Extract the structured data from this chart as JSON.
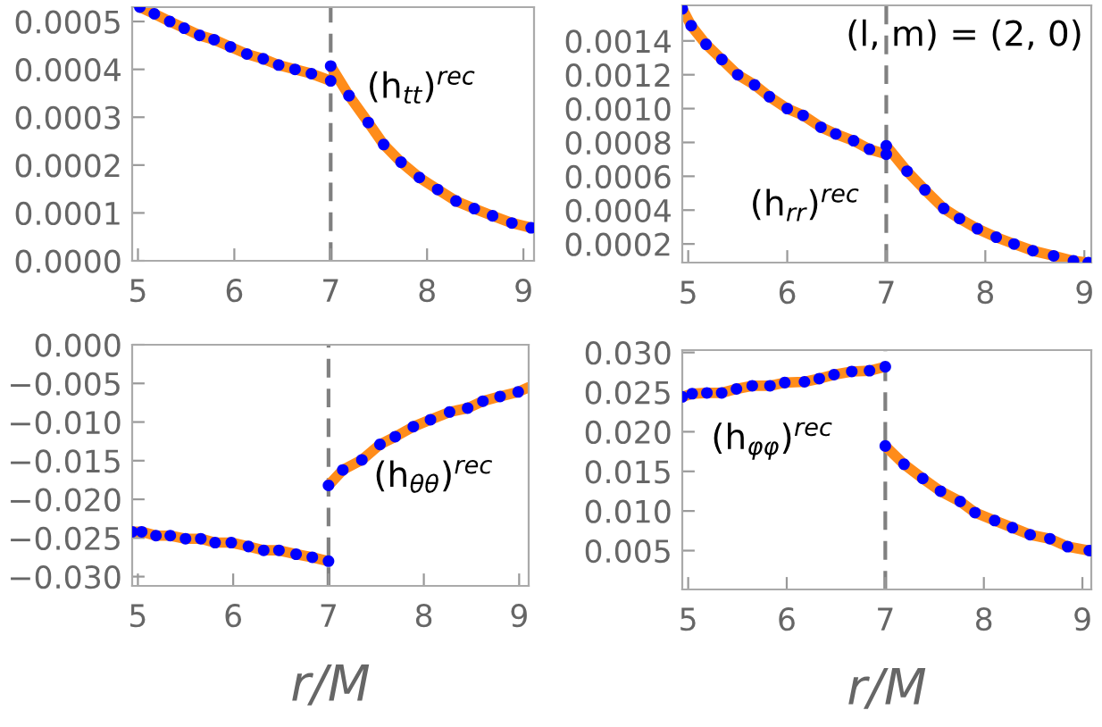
{
  "chart_data": [
    {
      "type": "line",
      "annotations": [
        "(h$_{tt}$)$^{rec}$"
      ],
      "xlim": [
        4.94,
        9.11
      ],
      "xticks": [
        5,
        6,
        7,
        8,
        9
      ],
      "ylim": [
        0,
        0.00053
      ],
      "yticks": [
        {
          "value": 0,
          "label": "0.0000"
        },
        0.0001,
        0.0002,
        0.0003,
        0.0004,
        0.0005
      ],
      "grid": false,
      "ref_lines": [
        {
          "axis": "x",
          "value": 7,
          "color": "#808080",
          "line_style": "dashed"
        }
      ],
      "series": [
        {
          "type": "line",
          "color": "#ff8c1a",
          "x": [
            5.02,
            5.17,
            5.33,
            5.48,
            5.64,
            5.79,
            5.96,
            6.13,
            6.3,
            6.46,
            6.63,
            6.8,
            7.0
          ],
          "values": [
            0.00053,
            0.000516,
            0.0005,
            0.000486,
            0.000471,
            0.000462,
            0.000447,
            0.000432,
            0.000422,
            0.000409,
            0.0004,
            0.000391,
            0.000376
          ]
        },
        {
          "type": "line",
          "color": "#ff8c1a",
          "x": [
            7.0,
            7.19,
            7.39,
            7.55,
            7.73,
            7.92,
            8.11,
            8.3,
            8.49,
            8.68,
            8.88,
            9.08
          ],
          "values": [
            0.000407,
            0.000345,
            0.000289,
            0.000243,
            0.000206,
            0.000174,
            0.000149,
            0.000125,
            0.000109,
            9.4e-05,
            7.9e-05,
            6.9e-05
          ]
        },
        {
          "type": "scatter",
          "color": "#0000ff",
          "marker": "circle",
          "x": [
            5.02,
            5.17,
            5.33,
            5.48,
            5.64,
            5.79,
            5.96,
            6.13,
            6.3,
            6.46,
            6.63,
            6.8,
            7.0,
            7.0,
            7.19,
            7.39,
            7.55,
            7.73,
            7.92,
            8.11,
            8.3,
            8.49,
            8.68,
            8.88,
            9.08
          ],
          "values": [
            0.00053,
            0.000516,
            0.0005,
            0.000486,
            0.000471,
            0.000462,
            0.000447,
            0.000432,
            0.000422,
            0.000409,
            0.0004,
            0.000391,
            0.000376,
            0.000407,
            0.000345,
            0.000289,
            0.000243,
            0.000206,
            0.000174,
            0.000149,
            0.000125,
            0.000109,
            9.4e-05,
            7.9e-05,
            6.9e-05
          ]
        }
      ]
    },
    {
      "type": "line",
      "annotations": [
        "(h$_{rr}$)$^{rec}$",
        "(l, m) = (2, 0)"
      ],
      "xlim": [
        4.94,
        9.07
      ],
      "xticks": [
        5,
        6,
        7,
        8,
        9
      ],
      "ylim": [
        9e-05,
        0.00161
      ],
      "yticks": [
        0.0002,
        0.0004,
        0.0006,
        0.0008,
        {
          "value": 0.001,
          "label": "0.0010"
        },
        0.0012,
        0.0014
      ],
      "grid": false,
      "ref_lines": [
        {
          "axis": "x",
          "value": 7,
          "color": "#808080",
          "line_style": "dashed"
        }
      ],
      "series": [
        {
          "type": "line",
          "color": "#ff8c1a",
          "x": [
            4.94,
            5.03,
            5.18,
            5.34,
            5.5,
            5.67,
            5.82,
            6.0,
            6.16,
            6.34,
            6.49,
            6.67,
            6.83,
            7.0
          ],
          "values": [
            0.00159,
            0.00149,
            0.00138,
            0.00129,
            0.0012,
            0.00114,
            0.00107,
            0.001,
            0.00096,
            0.00089,
            0.00085,
            0.00081,
            0.00076,
            0.00073
          ]
        },
        {
          "type": "line",
          "color": "#ff8c1a",
          "x": [
            7.0,
            7.21,
            7.39,
            7.58,
            7.74,
            7.92,
            8.11,
            8.29,
            8.48,
            8.69,
            8.89,
            9.04
          ],
          "values": [
            0.00078,
            0.00063,
            0.00052,
            0.00041,
            0.00035,
            0.00029,
            0.00024,
            0.0002,
            0.00016,
            0.00013,
            0.0001,
            9e-05
          ]
        },
        {
          "type": "scatter",
          "color": "#0000ff",
          "marker": "circle",
          "x": [
            4.94,
            5.03,
            5.18,
            5.34,
            5.5,
            5.67,
            5.82,
            6.0,
            6.16,
            6.34,
            6.49,
            6.67,
            6.83,
            7.0,
            7.0,
            7.21,
            7.39,
            7.58,
            7.74,
            7.92,
            8.11,
            8.29,
            8.48,
            8.69,
            8.89,
            9.04
          ],
          "values": [
            0.00159,
            0.00149,
            0.00138,
            0.00129,
            0.0012,
            0.00114,
            0.00107,
            0.001,
            0.00096,
            0.00089,
            0.00085,
            0.00081,
            0.00076,
            0.00073,
            0.00078,
            0.00063,
            0.00052,
            0.00041,
            0.00035,
            0.00029,
            0.00024,
            0.0002,
            0.00016,
            0.00013,
            0.0001,
            9e-05
          ]
        }
      ]
    },
    {
      "type": "line",
      "annotations": [
        "(h$_{θθ}$)$^{rec}$"
      ],
      "xlabel": "r/M",
      "xlim": [
        4.94,
        9.1
      ],
      "xticks": [
        5,
        6,
        7,
        8,
        9
      ],
      "ylim": [
        -0.0312,
        0
      ],
      "yticks": [
        {
          "value": 0,
          "label": "0.000"
        },
        {
          "value": -0.005,
          "label": "−0.005"
        },
        {
          "value": -0.01,
          "label": "−0.010"
        },
        {
          "value": -0.015,
          "label": "−0.015"
        },
        {
          "value": -0.02,
          "label": "−0.020"
        },
        {
          "value": -0.025,
          "label": "−0.025"
        },
        {
          "value": -0.03,
          "label": "−0.030"
        }
      ],
      "grid": false,
      "ref_lines": [
        {
          "axis": "x",
          "value": 7,
          "color": "#808080",
          "line_style": "dashed"
        }
      ],
      "series": [
        {
          "type": "line",
          "color": "#ff8c1a",
          "x": [
            4.94,
            5.04,
            5.19,
            5.34,
            5.5,
            5.66,
            5.81,
            5.98,
            6.16,
            6.32,
            6.48,
            6.66,
            6.83,
            7.0
          ],
          "values": [
            -0.0242,
            -0.0242,
            -0.0247,
            -0.0247,
            -0.0251,
            -0.0251,
            -0.0256,
            -0.0256,
            -0.0261,
            -0.0266,
            -0.0266,
            -0.0271,
            -0.0275,
            -0.028
          ]
        },
        {
          "type": "line",
          "color": "#ff8c1a",
          "x": [
            7.0,
            7.15,
            7.35,
            7.54,
            7.7,
            7.89,
            8.07,
            8.27,
            8.46,
            8.62,
            8.8,
            8.99,
            9.1
          ],
          "values": [
            -0.0182,
            -0.0162,
            -0.0149,
            -0.0129,
            -0.0119,
            -0.0106,
            -0.0097,
            -0.0087,
            -0.0082,
            -0.0073,
            -0.0067,
            -0.0061,
            -0.0055
          ]
        },
        {
          "type": "scatter",
          "color": "#0000ff",
          "marker": "circle",
          "x": [
            4.94,
            5.04,
            5.19,
            5.34,
            5.5,
            5.66,
            5.81,
            5.98,
            6.16,
            6.32,
            6.48,
            6.66,
            6.83,
            7.0,
            7.0,
            7.15,
            7.35,
            7.54,
            7.7,
            7.89,
            8.07,
            8.27,
            8.46,
            8.62,
            8.8,
            8.99
          ],
          "values": [
            -0.0242,
            -0.0242,
            -0.0247,
            -0.0247,
            -0.0251,
            -0.0251,
            -0.0256,
            -0.0256,
            -0.0261,
            -0.0266,
            -0.0266,
            -0.0271,
            -0.0275,
            -0.028,
            -0.0182,
            -0.0162,
            -0.0149,
            -0.0129,
            -0.0119,
            -0.0106,
            -0.0097,
            -0.0087,
            -0.0082,
            -0.0073,
            -0.0067,
            -0.0061
          ]
        }
      ]
    },
    {
      "type": "line",
      "annotations": [
        "(h$_{φφ}$)$^{rec}$"
      ],
      "xlabel": "r/M",
      "xlim": [
        4.94,
        9.09
      ],
      "xticks": [
        5,
        6,
        7,
        8,
        9
      ],
      "ylim": [
        0.0001,
        0.0303
      ],
      "yticks": [
        0.005,
        {
          "value": 0.01,
          "label": "0.010"
        },
        0.015,
        {
          "value": 0.02,
          "label": "0.020"
        },
        0.025,
        {
          "value": 0.03,
          "label": "0.030"
        }
      ],
      "grid": false,
      "ref_lines": [
        {
          "axis": "x",
          "value": 7,
          "color": "#808080",
          "line_style": "dashed"
        }
      ],
      "series": [
        {
          "type": "line",
          "color": "#ff8c1a",
          "x": [
            4.94,
            5.04,
            5.19,
            5.34,
            5.49,
            5.65,
            5.83,
            5.98,
            6.18,
            6.33,
            6.48,
            6.66,
            6.84,
            7.0
          ],
          "values": [
            0.0244,
            0.0248,
            0.0249,
            0.0249,
            0.0254,
            0.0258,
            0.0258,
            0.0262,
            0.0263,
            0.0267,
            0.0272,
            0.0276,
            0.0277,
            0.0282
          ]
        },
        {
          "type": "line",
          "color": "#ff8c1a",
          "x": [
            7.0,
            7.19,
            7.38,
            7.56,
            7.76,
            7.91,
            8.11,
            8.29,
            8.47,
            8.67,
            8.85,
            9.07
          ],
          "values": [
            0.0182,
            0.0159,
            0.0141,
            0.0125,
            0.0112,
            0.0098,
            0.0088,
            0.0079,
            0.007,
            0.0065,
            0.0055,
            0.005
          ]
        },
        {
          "type": "scatter",
          "color": "#0000ff",
          "marker": "circle",
          "x": [
            4.94,
            5.04,
            5.19,
            5.34,
            5.49,
            5.65,
            5.83,
            5.98,
            6.18,
            6.33,
            6.48,
            6.66,
            6.84,
            7.0,
            7.0,
            7.19,
            7.38,
            7.56,
            7.76,
            7.91,
            8.11,
            8.29,
            8.47,
            8.67,
            8.85,
            9.07
          ],
          "values": [
            0.0244,
            0.0248,
            0.0249,
            0.0249,
            0.0254,
            0.0258,
            0.0258,
            0.0262,
            0.0263,
            0.0267,
            0.0272,
            0.0276,
            0.0277,
            0.0282,
            0.0182,
            0.0159,
            0.0141,
            0.0125,
            0.0112,
            0.0098,
            0.0088,
            0.0079,
            0.007,
            0.0065,
            0.0055,
            0.005
          ]
        }
      ]
    }
  ]
}
